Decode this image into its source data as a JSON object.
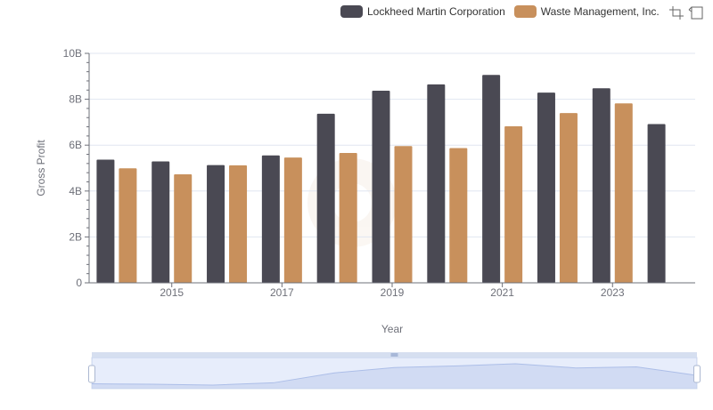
{
  "legend": {
    "items": [
      {
        "label": "Lockheed Martin Corporation",
        "color": "#4a4953"
      },
      {
        "label": "Waste Management, Inc.",
        "color": "#c8905c"
      }
    ]
  },
  "toolbox": {
    "icons": [
      "zoom-select-icon",
      "zoom-reset-icon"
    ]
  },
  "chart_data": {
    "type": "bar",
    "xlabel": "Year",
    "ylabel": "Gross Profit",
    "ylim": [
      0,
      10000000000
    ],
    "y_ticks": [
      "0",
      "2B",
      "4B",
      "6B",
      "8B",
      "10B"
    ],
    "x_tick_labels": [
      "2015",
      "2017",
      "2019",
      "2021",
      "2023"
    ],
    "categories": [
      "2014",
      "2015",
      "2016",
      "2017",
      "2018",
      "2019",
      "2020",
      "2021",
      "2022",
      "2023",
      "2024"
    ],
    "series": [
      {
        "name": "Lockheed Martin Corporation",
        "color": "#4a4953",
        "values": [
          5370000000,
          5290000000,
          5130000000,
          5550000000,
          7370000000,
          8370000000,
          8650000000,
          9060000000,
          8290000000,
          8480000000,
          6920000000
        ]
      },
      {
        "name": "Waste Management, Inc.",
        "color": "#c8905c",
        "values": [
          4990000000,
          4730000000,
          5120000000,
          5460000000,
          5660000000,
          5960000000,
          5870000000,
          6820000000,
          7400000000,
          7820000000,
          null
        ]
      }
    ],
    "grid": true,
    "legend_position": "top-right",
    "data_zoom": {
      "start_percent": 0,
      "end_percent": 100
    }
  }
}
